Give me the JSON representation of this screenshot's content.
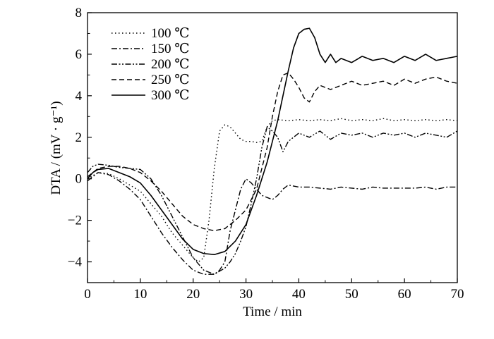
{
  "chart_data": {
    "type": "line",
    "title": "",
    "xlabel": "Time / min",
    "ylabel": "DTA / (mV · g⁻¹)",
    "xlim": [
      0,
      70
    ],
    "ylim": [
      -5,
      8
    ],
    "xticks": [
      0,
      10,
      20,
      30,
      40,
      50,
      60,
      70
    ],
    "yticks": [
      -4,
      -2,
      0,
      2,
      4,
      6,
      8
    ],
    "x_tick_labels": [
      "0",
      "10",
      "20",
      "30",
      "40",
      "50",
      "60",
      "70"
    ],
    "y_tick_labels": [
      "−4",
      "−2",
      "0",
      "2",
      "4",
      "6",
      "8"
    ],
    "grid": false,
    "legend_position": "top-left",
    "series": [
      {
        "name": "100 ℃",
        "style": "dotted",
        "x": [
          0,
          2,
          4,
          6,
          8,
          10,
          12,
          14,
          16,
          18,
          20,
          21,
          22,
          23,
          24,
          25,
          26,
          27,
          28,
          29,
          30,
          31,
          32,
          33,
          34,
          35,
          36,
          38,
          40,
          42,
          44,
          46,
          48,
          50,
          52,
          54,
          56,
          58,
          60,
          62,
          64,
          66,
          68,
          70
        ],
        "y": [
          0.0,
          0.3,
          0.25,
          0.0,
          -0.3,
          -0.6,
          -1.2,
          -1.8,
          -2.6,
          -3.2,
          -3.8,
          -4.0,
          -3.8,
          -2.0,
          0.5,
          2.3,
          2.6,
          2.5,
          2.2,
          1.9,
          1.8,
          1.8,
          1.75,
          1.8,
          2.5,
          2.8,
          2.85,
          2.8,
          2.85,
          2.8,
          2.85,
          2.8,
          2.9,
          2.8,
          2.85,
          2.8,
          2.9,
          2.8,
          2.85,
          2.8,
          2.85,
          2.8,
          2.85,
          2.8
        ]
      },
      {
        "name": "150 ℃",
        "style": "dash-dot",
        "x": [
          0,
          2,
          4,
          6,
          8,
          10,
          12,
          14,
          16,
          18,
          20,
          22,
          24,
          25,
          26,
          27,
          28,
          29,
          30,
          31,
          32,
          33,
          34,
          35,
          36,
          37,
          38,
          40,
          42,
          44,
          46,
          48,
          50,
          52,
          54,
          56,
          58,
          60,
          62,
          64,
          66,
          68,
          70
        ],
        "y": [
          -0.1,
          0.3,
          0.2,
          -0.1,
          -0.5,
          -1.0,
          -1.8,
          -2.6,
          -3.3,
          -3.9,
          -4.4,
          -4.6,
          -4.6,
          -4.4,
          -4.0,
          -2.5,
          -1.5,
          -0.5,
          0.0,
          -0.2,
          -0.5,
          -0.8,
          -0.9,
          -1.0,
          -0.8,
          -0.5,
          -0.3,
          -0.4,
          -0.4,
          -0.45,
          -0.5,
          -0.4,
          -0.45,
          -0.5,
          -0.4,
          -0.45,
          -0.45,
          -0.45,
          -0.45,
          -0.4,
          -0.5,
          -0.4,
          -0.4
        ]
      },
      {
        "name": "200 ℃",
        "style": "dash-dot-dot",
        "x": [
          0,
          1,
          2,
          4,
          6,
          8,
          10,
          12,
          14,
          16,
          18,
          20,
          22,
          24,
          26,
          27,
          28,
          29,
          30,
          31,
          32,
          33,
          34,
          35,
          36,
          37,
          38,
          40,
          42,
          44,
          46,
          48,
          50,
          52,
          54,
          56,
          58,
          60,
          62,
          64,
          66,
          68,
          70
        ],
        "y": [
          0.3,
          0.6,
          0.7,
          0.65,
          0.55,
          0.5,
          0.45,
          0.0,
          -0.8,
          -1.8,
          -2.8,
          -3.8,
          -4.4,
          -4.6,
          -4.3,
          -4.0,
          -3.6,
          -3.0,
          -2.3,
          -1.2,
          0.0,
          1.5,
          2.5,
          2.3,
          2.0,
          1.3,
          1.8,
          2.2,
          2.0,
          2.3,
          1.9,
          2.2,
          2.1,
          2.2,
          2.0,
          2.2,
          2.1,
          2.2,
          2.0,
          2.2,
          2.1,
          2.0,
          2.3
        ]
      },
      {
        "name": "250 ℃",
        "style": "dashed",
        "x": [
          0,
          2,
          4,
          6,
          8,
          10,
          12,
          14,
          16,
          18,
          20,
          22,
          24,
          26,
          28,
          30,
          32,
          34,
          35,
          36,
          37,
          38,
          39,
          40,
          41,
          42,
          43,
          44,
          46,
          48,
          50,
          52,
          54,
          56,
          58,
          60,
          62,
          64,
          66,
          68,
          70
        ],
        "y": [
          0.1,
          0.5,
          0.6,
          0.6,
          0.5,
          0.3,
          -0.1,
          -0.6,
          -1.2,
          -1.8,
          -2.2,
          -2.4,
          -2.5,
          -2.4,
          -2.0,
          -1.5,
          -0.5,
          1.5,
          3.0,
          4.2,
          5.0,
          5.1,
          4.8,
          4.4,
          3.9,
          3.7,
          4.2,
          4.5,
          4.3,
          4.5,
          4.7,
          4.5,
          4.6,
          4.7,
          4.5,
          4.8,
          4.6,
          4.8,
          4.9,
          4.7,
          4.6
        ]
      },
      {
        "name": "300 ℃",
        "style": "solid",
        "x": [
          0,
          1,
          2,
          4,
          6,
          8,
          10,
          12,
          14,
          16,
          18,
          20,
          22,
          24,
          26,
          28,
          30,
          32,
          34,
          36,
          37,
          38,
          39,
          40,
          41,
          42,
          43,
          44,
          45,
          46,
          47,
          48,
          50,
          52,
          54,
          56,
          58,
          60,
          62,
          64,
          66,
          68,
          70
        ],
        "y": [
          0.0,
          0.3,
          0.45,
          0.5,
          0.3,
          0.1,
          -0.2,
          -0.8,
          -1.5,
          -2.2,
          -2.9,
          -3.4,
          -3.6,
          -3.65,
          -3.5,
          -3.0,
          -2.2,
          -0.8,
          0.8,
          2.8,
          4.0,
          5.2,
          6.3,
          7.0,
          7.2,
          7.25,
          6.8,
          6.0,
          5.6,
          6.0,
          5.6,
          5.8,
          5.6,
          5.9,
          5.7,
          5.8,
          5.6,
          5.9,
          5.7,
          6.0,
          5.7,
          5.8,
          5.9
        ]
      }
    ]
  }
}
